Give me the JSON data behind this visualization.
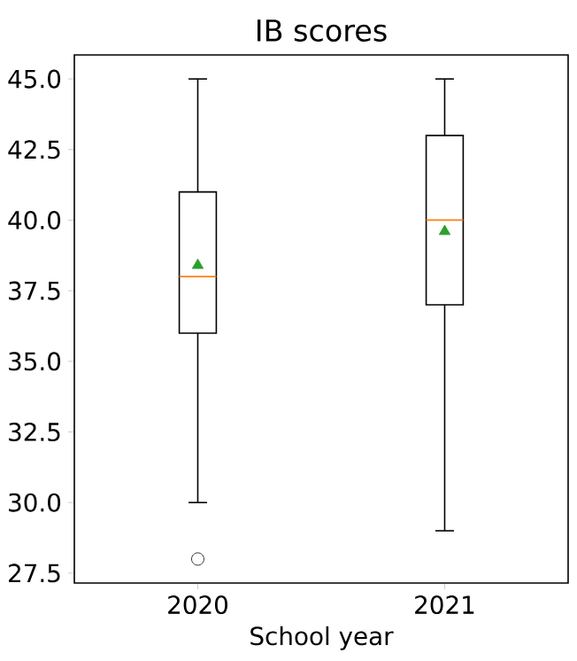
{
  "chart_data": {
    "type": "box",
    "title": "IB scores",
    "xlabel": "School year",
    "categories": [
      "2020",
      "2021"
    ],
    "boxes": [
      {
        "low": 30,
        "q1": 36,
        "median": 38,
        "q3": 41,
        "high": 45,
        "mean": 38.4,
        "outliers": [
          28
        ]
      },
      {
        "low": 29,
        "q1": 37,
        "median": 40,
        "q3": 43,
        "high": 45,
        "mean": 39.6
      }
    ],
    "ylim": [
      27.15,
      45.85
    ],
    "yticks": [
      27.5,
      {
        "value": 30,
        "label": "30.0"
      },
      32.5,
      {
        "value": 35,
        "label": "35.0"
      },
      37.5,
      {
        "value": 40,
        "label": "40.0"
      },
      42.5,
      {
        "value": 45,
        "label": "45.0"
      }
    ]
  }
}
